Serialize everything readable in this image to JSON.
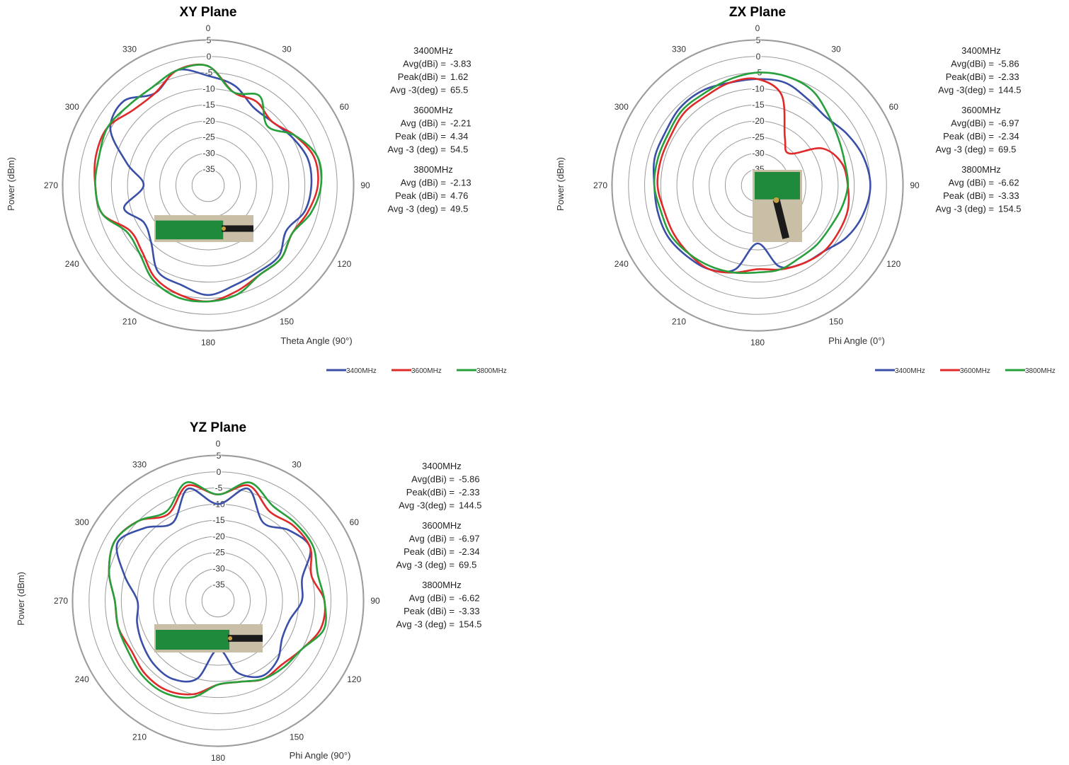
{
  "colors": {
    "3400MHz": "#3a4fa8",
    "3600MHz": "#e02a2a",
    "3800MHz": "#27a03c",
    "grid": "#9a9a9a"
  },
  "chart_data": [
    {
      "type": "polar-line",
      "title": "XY Plane",
      "angle_label": "Theta Angle (90°)",
      "radial_label": "Power (dBm)",
      "angle_ticks": [
        "0",
        "30",
        "60",
        "90",
        "120",
        "150",
        "180",
        "210",
        "240",
        "270",
        "300",
        "330"
      ],
      "radial_ticks": [
        "5",
        "0",
        "-5",
        "-10",
        "-15",
        "-20",
        "-25",
        "-30",
        "-35"
      ],
      "rlim": [
        -40,
        5
      ],
      "grid": true,
      "legend": "bottom-right",
      "stats": [
        {
          "freq": "3400MHz",
          "lines": [
            "Avg(dBi) = -3.83",
            "Peak(dBi) = 1.62",
            "Avg -3(deg) = 65.5"
          ]
        },
        {
          "freq": "3600MHz",
          "lines": [
            "Avg (dBi) = -2.21",
            "Peak (dBi) = 4.34",
            "Avg -3 (deg) = 54.5"
          ]
        },
        {
          "freq": "3800MHz",
          "lines": [
            "Avg (dBi) = -2.13",
            "Peak (dBi) = 4.76",
            "Avg -3 (deg) = 49.5"
          ]
        }
      ],
      "angles": [
        0,
        15,
        30,
        45,
        60,
        75,
        90,
        105,
        120,
        135,
        150,
        165,
        180,
        195,
        210,
        225,
        240,
        255,
        270,
        285,
        300,
        315,
        330,
        345
      ],
      "series": [
        {
          "name": "3400MHz",
          "values": [
            -6,
            -8,
            -12,
            -12,
            -10,
            -8,
            -8,
            -9,
            -12,
            -9,
            -9,
            -8,
            -6,
            -8,
            -9,
            -15,
            -17,
            -13,
            -20,
            -14,
            -5,
            -3,
            -7,
            -3
          ]
        },
        {
          "name": "3600MHz",
          "values": [
            -3,
            -10,
            -10,
            -12,
            -9,
            -6,
            -6,
            -8,
            -10,
            -8,
            -8,
            -6,
            -4,
            -5,
            -7,
            -11,
            -12,
            -6,
            -5,
            -4,
            -4,
            -7,
            -7,
            -3
          ]
        },
        {
          "name": "3800MHz",
          "values": [
            -3,
            -10,
            -8,
            -14,
            -9,
            -5,
            -5,
            -7,
            -10,
            -8,
            -8,
            -5,
            -4,
            -4,
            -6,
            -10,
            -11,
            -6,
            -5,
            -5,
            -4,
            -5,
            -5,
            -3
          ]
        }
      ]
    },
    {
      "type": "polar-line",
      "title": "ZX Plane",
      "angle_label": "Phi Angle (0°)",
      "radial_label": "Power (dBm)",
      "angle_ticks": [
        "0",
        "30",
        "60",
        "90",
        "120",
        "150",
        "180",
        "210",
        "240",
        "270",
        "300",
        "330"
      ],
      "radial_ticks": [
        "5",
        "0",
        "-5",
        "-10",
        "-15",
        "-20",
        "-25",
        "-30",
        "-35"
      ],
      "rlim": [
        -40,
        5
      ],
      "grid": true,
      "legend": "bottom-right",
      "stats": [
        {
          "freq": "3400MHz",
          "lines": [
            "Avg(dBi) = -5.86",
            "Peak(dBi) = -2.33",
            "Avg -3(deg) = 144.5"
          ]
        },
        {
          "freq": "3600MHz",
          "lines": [
            "Avg(dBi) = -6.97",
            "Peak (dBi) = -2.34",
            "Avg -3 (deg) = 69.5"
          ]
        },
        {
          "freq": "3800MHz",
          "lines": [
            "Avg (dBi) = -6.62",
            "Peak (dBi) = -3.33",
            "Avg -3 (deg) = 154.5"
          ]
        }
      ],
      "angles": [
        0,
        15,
        30,
        45,
        60,
        75,
        90,
        105,
        120,
        135,
        150,
        165,
        180,
        195,
        210,
        225,
        240,
        255,
        270,
        285,
        300,
        315,
        330,
        345
      ],
      "series": [
        {
          "name": "3400MHz",
          "values": [
            -7,
            -7,
            -9,
            -10,
            -8,
            -6,
            -5,
            -6,
            -8,
            -11,
            -12,
            -14,
            -22,
            -13,
            -10,
            -9,
            -8,
            -8,
            -8,
            -7,
            -7,
            -6,
            -6,
            -7
          ]
        },
        {
          "name": "3600MHz",
          "values": [
            -7,
            -11,
            -23,
            -26,
            -17,
            -13,
            -12,
            -11,
            -11,
            -11,
            -12,
            -13,
            -14,
            -12,
            -10,
            -10,
            -10,
            -10,
            -9,
            -9,
            -9,
            -8,
            -8,
            -7
          ]
        },
        {
          "name": "3800MHz",
          "values": [
            -5,
            -5,
            -6,
            -9,
            -11,
            -12,
            -12,
            -13,
            -14,
            -14,
            -14,
            -13,
            -13,
            -12,
            -11,
            -10,
            -9,
            -9,
            -8,
            -8,
            -8,
            -7,
            -7,
            -6
          ]
        }
      ]
    },
    {
      "type": "polar-line",
      "title": "YZ Plane",
      "angle_label": "Phi Angle (90°)",
      "radial_label": "Power (dBm)",
      "angle_ticks": [
        "0",
        "30",
        "60",
        "90",
        "120",
        "150",
        "180",
        "210",
        "240",
        "270",
        "300",
        "330"
      ],
      "radial_ticks": [
        "5",
        "0",
        "-5",
        "-10",
        "-15",
        "-20",
        "-25",
        "-30",
        "-35"
      ],
      "rlim": [
        -40,
        5
      ],
      "grid": true,
      "legend": "bottom-right",
      "stats": [
        {
          "freq": "3400MHz",
          "lines": [
            "Avg(dBi) = -5.86",
            "Peak(dBi) = -2.33",
            "Avg -3(deg) = 144.5"
          ]
        },
        {
          "freq": "3600MHz",
          "lines": [
            "Avg (dBi) = -6.97",
            "Peak (dBi) = -2.34",
            "Avg -3 (deg) = 69.5"
          ]
        },
        {
          "freq": "3800MHz",
          "lines": [
            "Avg (dBi) = -6.62",
            "Peak (dBi) = -3.33",
            "Avg -3 (deg) = 154.5"
          ]
        }
      ],
      "angles": [
        0,
        15,
        30,
        45,
        60,
        75,
        90,
        105,
        120,
        135,
        150,
        165,
        180,
        195,
        210,
        225,
        240,
        255,
        270,
        285,
        300,
        315,
        330,
        345
      ],
      "series": [
        {
          "name": "3400MHz",
          "values": [
            -10,
            -4,
            -12,
            -9,
            -7,
            -13,
            -14,
            -17,
            -17,
            -14,
            -13,
            -17,
            -25,
            -15,
            -12,
            -12,
            -13,
            -14,
            -15,
            -10,
            -4,
            -8,
            -12,
            -4
          ]
        },
        {
          "name": "3600MHz",
          "values": [
            -7,
            -3,
            -8,
            -7,
            -7,
            -10,
            -7,
            -7,
            -10,
            -12,
            -12,
            -14,
            -14,
            -10,
            -8,
            -8,
            -9,
            -8,
            -8,
            -5,
            -3,
            -5,
            -9,
            -3
          ]
        },
        {
          "name": "3800MHz",
          "values": [
            -7,
            -2,
            -6,
            -6,
            -6,
            -8,
            -7,
            -6,
            -10,
            -11,
            -12,
            -14,
            -14,
            -9,
            -7,
            -7,
            -8,
            -8,
            -8,
            -5,
            -3,
            -5,
            -8,
            -2
          ]
        }
      ]
    }
  ]
}
